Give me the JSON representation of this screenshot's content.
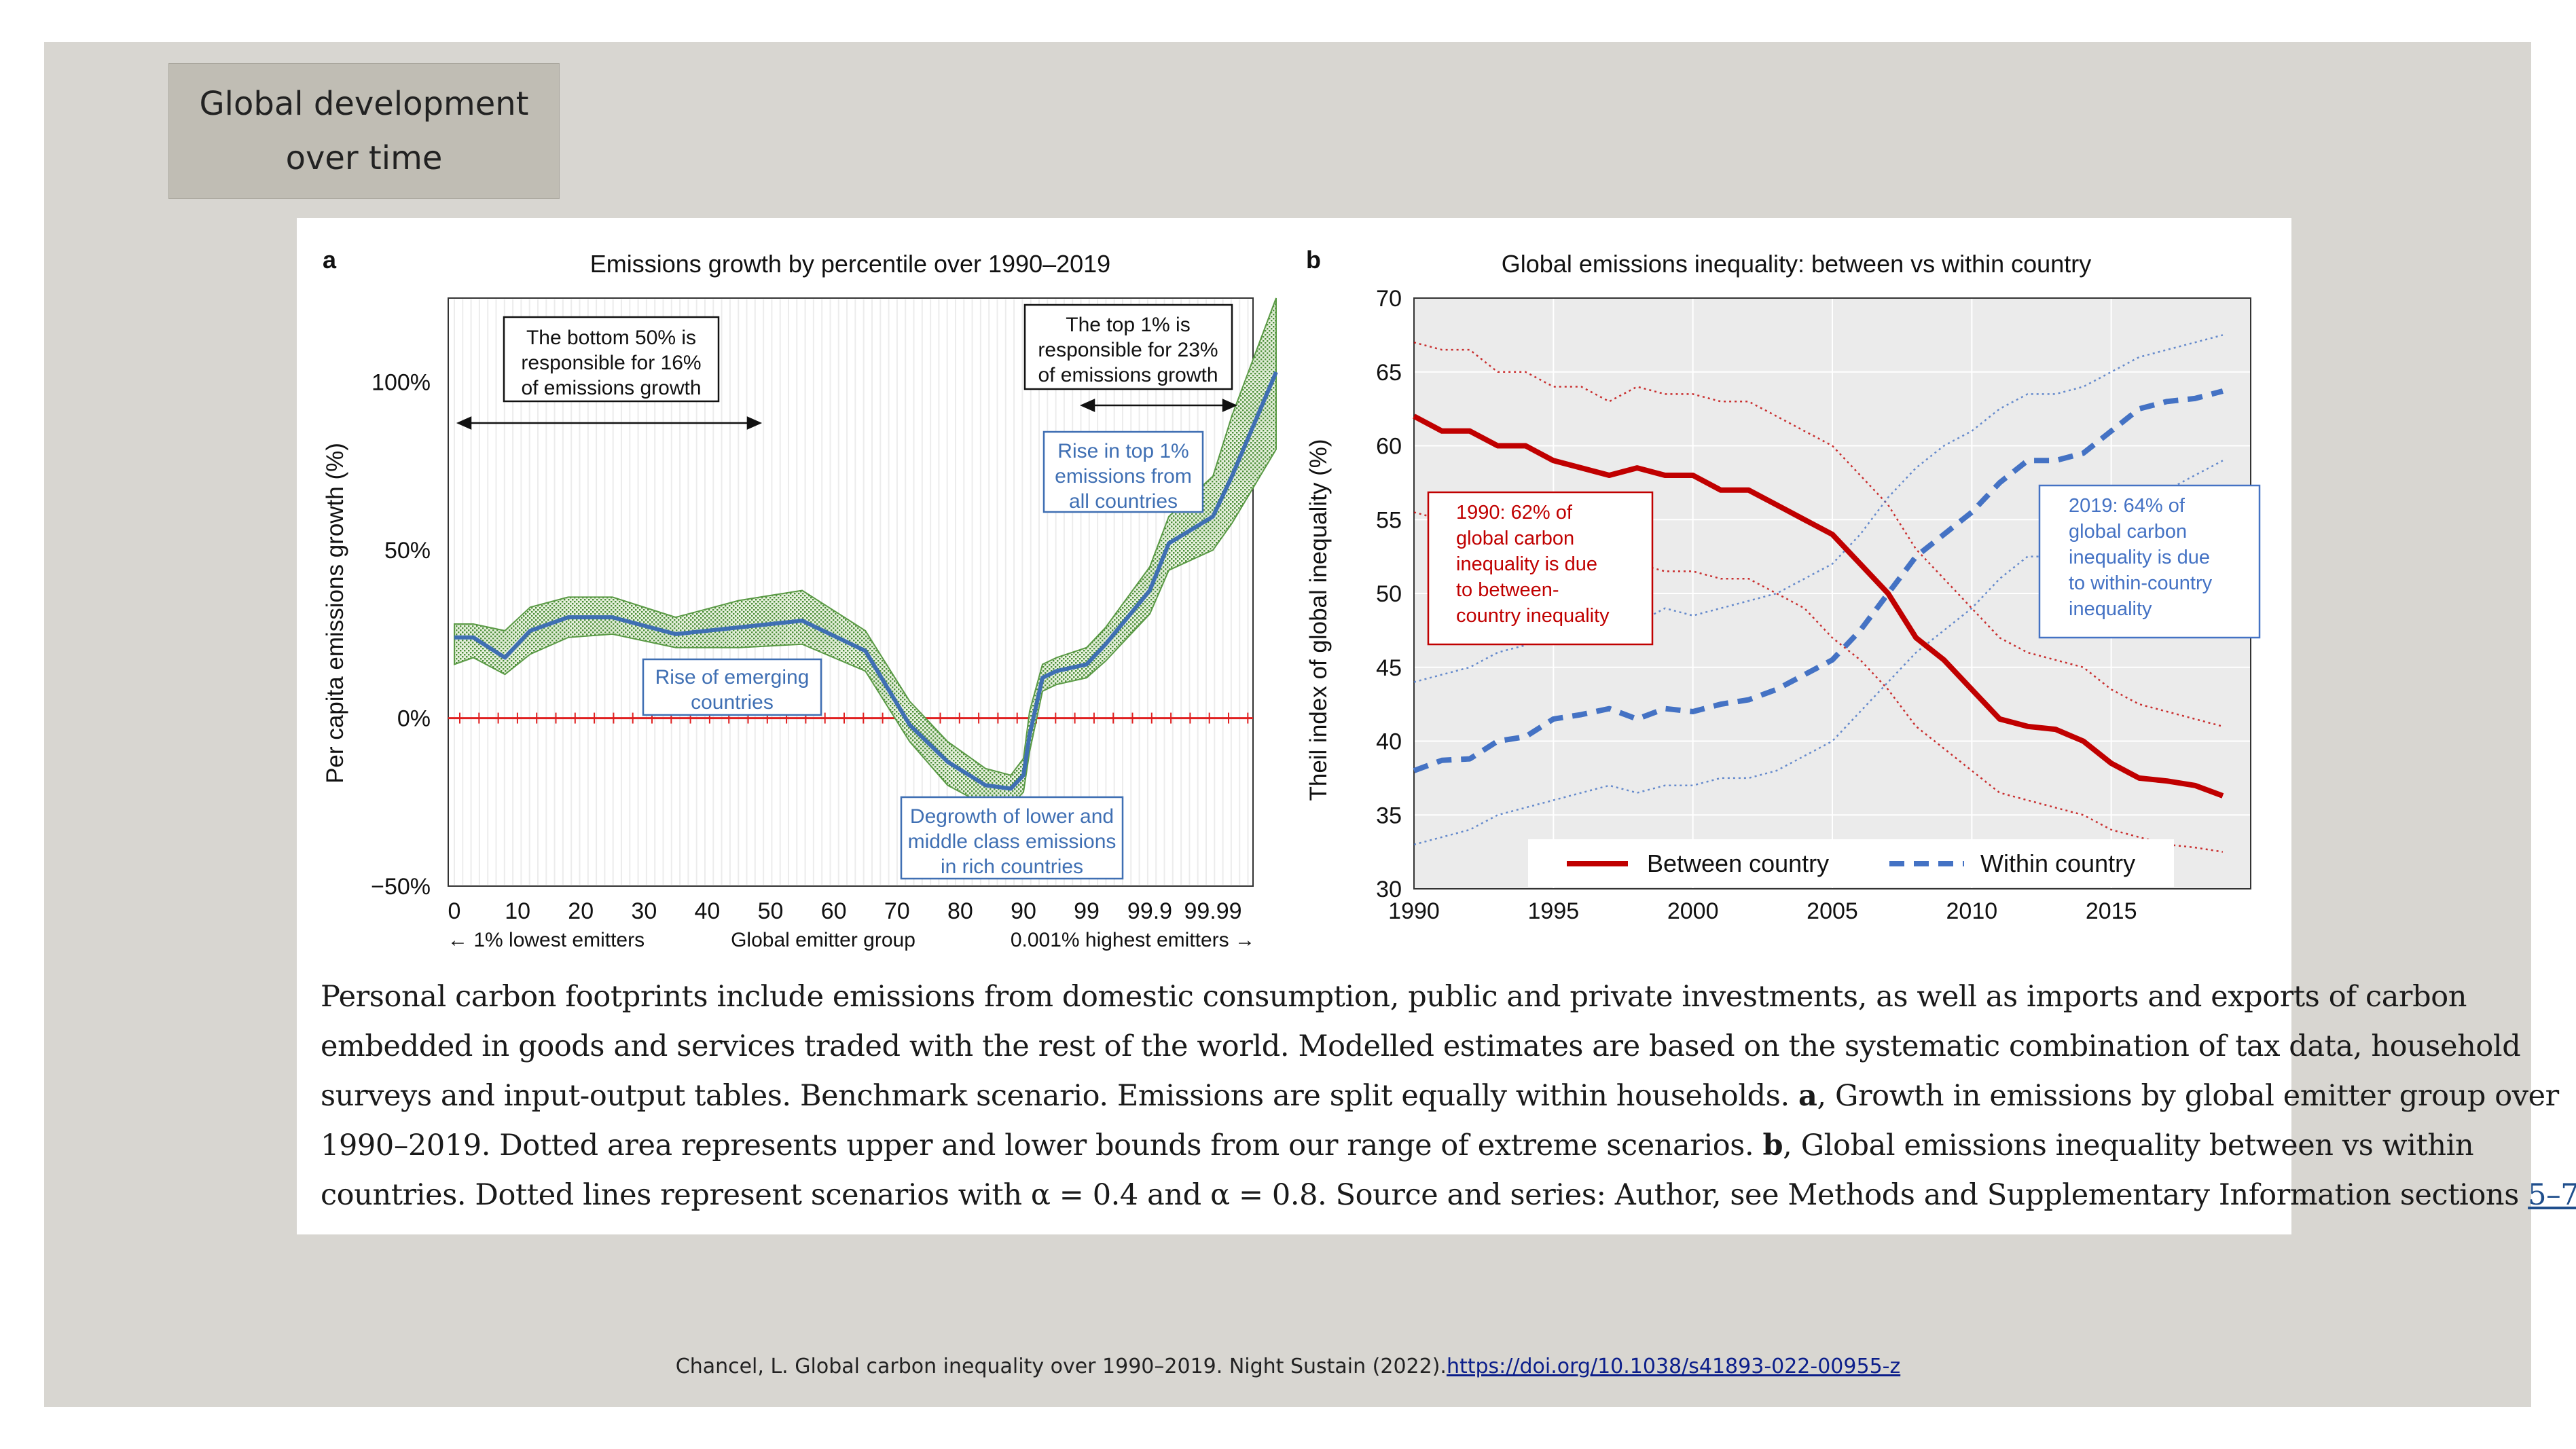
{
  "slide": {
    "tag_lines": [
      "Global development",
      "over time"
    ]
  },
  "panel_a": {
    "letter": "a",
    "ticks_x": [
      "0",
      "10",
      "20",
      "30",
      "40",
      "50",
      "60",
      "70",
      "80",
      "90",
      "99",
      "99.9",
      "99.99"
    ],
    "ticks_y": [
      "100%",
      "50%",
      "0%",
      "−50%"
    ],
    "below_axis": [
      "← 1% lowest emitters",
      "Global emitter group",
      "0.001% highest emitters  →"
    ],
    "boxes": {
      "bottom50": [
        "The bottom 50% is",
        "responsible for 16%",
        "of emissions growth"
      ],
      "top1": [
        "The top 1% is",
        "responsible for 23%",
        "of  emissions growth"
      ],
      "rise_top": [
        "Rise in top 1%",
        "emissions from",
        "all countries"
      ],
      "rise_emerging": [
        "Rise of emerging",
        "countries"
      ],
      "degrowth": [
        "Degrowth of lower and",
        "middle class emissions",
        "in rich countries"
      ]
    }
  },
  "panel_b": {
    "letter": "b",
    "ticks_x": [
      "1990",
      "1995",
      "2000",
      "2005",
      "2010",
      "2015"
    ],
    "ticks_y": [
      "70",
      "65",
      "60",
      "55",
      "50",
      "45",
      "40",
      "35",
      "30"
    ],
    "box_1990": [
      "1990: 62% of",
      "global carbon",
      "inequality is due",
      "to between-",
      "country inequality"
    ],
    "box_2019": [
      "2019: 64% of",
      "global carbon",
      "inequality is due",
      "to within-country",
      "inequality"
    ]
  },
  "chart_data": [
    {
      "type": "line",
      "title": "Emissions growth by percentile over 1990–2019",
      "xlabel": "",
      "ylabel": "Per capita emissions growth (%)",
      "ylim": [
        -50,
        125
      ],
      "x": [
        0,
        3,
        8,
        12,
        18,
        25,
        35,
        45,
        55,
        65,
        72,
        78,
        84,
        88,
        90,
        92,
        95,
        97,
        99,
        99.5,
        99.9,
        99.95,
        99.99,
        99.995,
        99.999
      ],
      "series": [
        {
          "values": [
            24,
            24,
            18,
            26,
            30,
            30,
            25,
            27,
            29,
            20,
            -2,
            -13,
            -20,
            -21,
            -17,
            -5,
            12,
            14,
            16,
            22,
            38,
            52,
            60,
            72,
            103
          ]
        }
      ],
      "bounds_upper": [
        28,
        28,
        26,
        33,
        36,
        36,
        30,
        35,
        38,
        26,
        5,
        -7,
        -15,
        -17,
        -12,
        2,
        16,
        18,
        21,
        27,
        45,
        60,
        72,
        90,
        125
      ],
      "bounds_lower": [
        16,
        18,
        13,
        19,
        24,
        25,
        21,
        21,
        22,
        14,
        -7,
        -20,
        -26,
        -26,
        -22,
        -10,
        8,
        10,
        12,
        17,
        31,
        44,
        50,
        58,
        80
      ],
      "reference_line": 0,
      "grid": true
    },
    {
      "type": "line",
      "title": "Global emissions inequality: between vs within country",
      "xlabel": "",
      "ylabel": "Theil index of global inequality (%)",
      "xlim": [
        1990,
        2020
      ],
      "ylim": [
        30,
        70
      ],
      "x": [
        1990,
        1991,
        1992,
        1993,
        1994,
        1995,
        1996,
        1997,
        1998,
        1999,
        2000,
        2001,
        2002,
        2003,
        2004,
        2005,
        2006,
        2007,
        2008,
        2009,
        2010,
        2011,
        2012,
        2013,
        2014,
        2015,
        2016,
        2017,
        2018,
        2019
      ],
      "series": [
        {
          "name": "Between country",
          "color": "#c00000",
          "style": "solid",
          "values": [
            62,
            61,
            61,
            60,
            60,
            59,
            58.5,
            58,
            58.5,
            58,
            58,
            57,
            57,
            56,
            55,
            54,
            52,
            50,
            47,
            45.5,
            43.5,
            41.5,
            41,
            40.8,
            40,
            38.5,
            37.5,
            37.3,
            37,
            36.3
          ]
        },
        {
          "name": "Within country",
          "color": "#4472c4",
          "style": "dashed",
          "values": [
            38,
            38.7,
            38.8,
            40,
            40.3,
            41.5,
            41.8,
            42.2,
            41.5,
            42.2,
            42,
            42.5,
            42.8,
            43.5,
            44.5,
            45.5,
            47.5,
            50,
            52.5,
            54,
            55.5,
            57.5,
            59,
            59,
            59.5,
            61,
            62.5,
            63,
            63.2,
            63.7
          ]
        }
      ],
      "scenario_bounds": {
        "between_upper": [
          67,
          66.5,
          66.5,
          65,
          65,
          64,
          64,
          63,
          64,
          63.5,
          63.5,
          63,
          63,
          62,
          61,
          60,
          58,
          56,
          53,
          51,
          49,
          47,
          46,
          45.5,
          45,
          43.5,
          42.5,
          42,
          41.5,
          41
        ],
        "between_lower": [
          55.5,
          55,
          55,
          54,
          54,
          53,
          53,
          52,
          52,
          51.5,
          51.5,
          51,
          51,
          50,
          49,
          47,
          45.5,
          43.5,
          41,
          39.5,
          38,
          36.5,
          36,
          35.5,
          35,
          34,
          33.5,
          33,
          32.8,
          32.5
        ],
        "within_upper": [
          44,
          44.5,
          45,
          46,
          46.5,
          47.5,
          48,
          48.5,
          48,
          49,
          48.5,
          49,
          49.5,
          50,
          51,
          52,
          54,
          56.5,
          58.5,
          60,
          61,
          62.5,
          63.5,
          63.5,
          64,
          65,
          66,
          66.5,
          67,
          67.5
        ],
        "within_lower": [
          33,
          33.5,
          34,
          35,
          35.5,
          36,
          36.5,
          37,
          36.5,
          37,
          37,
          37.5,
          37.5,
          38,
          39,
          40,
          42,
          44,
          46,
          47.5,
          49,
          51,
          52.5,
          52.5,
          53,
          54.5,
          56,
          57,
          58,
          59
        ]
      },
      "legend": "bottom",
      "grid": true
    }
  ],
  "caption_lines": [
    [
      "Personal carbon footprints include emissions from domestic consumption, public and private investments, as well as imports and exports of carbon"
    ],
    [
      "embedded in goods and services traded with the rest of the world. Modelled estimates are based on the systematic combination of tax data, household"
    ],
    [
      "surveys and input-output tables. Benchmark scenario. Emissions are split equally within households. ",
      "a",
      ", Growth in emissions by global emitter group over"
    ],
    [
      "1990–2019. Dotted area represents upper and lower bounds from our range of extreme scenarios. ",
      "b",
      ", Global emissions inequality between vs within"
    ],
    [
      "countries. Dotted lines represent scenarios with α = 0.4 and α = 0.8. Source and series: Author, see Methods and Supplementary Information sections ",
      "5–7",
      "."
    ]
  ],
  "source": {
    "text": "Chancel, L. Global carbon inequality over 1990–2019. Night Sustain (2022).",
    "url": "https://doi.org/10.1038/s41893-022-00955-z"
  }
}
